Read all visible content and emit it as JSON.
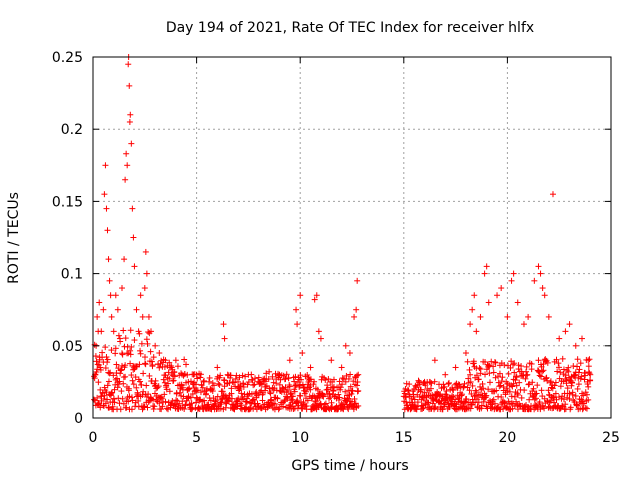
{
  "chart_data": {
    "type": "scatter",
    "title": "Day 194 of 2021, Rate Of TEC Index for receiver hlfx",
    "xlabel": "GPS time / hours",
    "ylabel": "ROTI / TECUs",
    "xlim": [
      0,
      25
    ],
    "ylim": [
      0,
      0.25
    ],
    "x_ticks": [
      "0",
      "5",
      "10",
      "15",
      "20",
      "25"
    ],
    "y_ticks": [
      "0",
      "0.05",
      "0.1",
      "0.15",
      "0.2",
      "0.25"
    ],
    "grid": true,
    "marker": "+",
    "series_color": "#ff0000",
    "data_gap_hours": [
      12.8,
      15.0
    ],
    "series": [
      {
        "name": "",
        "points": [
          [
            0.1,
            0.012
          ],
          [
            0.15,
            0.05
          ],
          [
            0.2,
            0.07
          ],
          [
            0.25,
            0.06
          ],
          [
            0.3,
            0.08
          ],
          [
            0.35,
            0.035
          ],
          [
            0.4,
            0.06
          ],
          [
            0.5,
            0.075
          ],
          [
            0.55,
            0.155
          ],
          [
            0.6,
            0.175
          ],
          [
            0.65,
            0.145
          ],
          [
            0.7,
            0.13
          ],
          [
            0.75,
            0.11
          ],
          [
            0.8,
            0.095
          ],
          [
            0.85,
            0.085
          ],
          [
            0.9,
            0.07
          ],
          [
            1.0,
            0.06
          ],
          [
            1.1,
            0.085
          ],
          [
            1.2,
            0.075
          ],
          [
            1.3,
            0.055
          ],
          [
            1.4,
            0.09
          ],
          [
            1.5,
            0.11
          ],
          [
            1.55,
            0.165
          ],
          [
            1.6,
            0.183
          ],
          [
            1.65,
            0.175
          ],
          [
            1.7,
            0.245
          ],
          [
            1.72,
            0.25
          ],
          [
            1.75,
            0.23
          ],
          [
            1.78,
            0.205
          ],
          [
            1.8,
            0.21
          ],
          [
            1.85,
            0.19
          ],
          [
            1.9,
            0.145
          ],
          [
            1.95,
            0.125
          ],
          [
            2.0,
            0.105
          ],
          [
            2.1,
            0.075
          ],
          [
            2.2,
            0.06
          ],
          [
            2.3,
            0.085
          ],
          [
            2.4,
            0.07
          ],
          [
            2.5,
            0.09
          ],
          [
            2.55,
            0.115
          ],
          [
            2.6,
            0.1
          ],
          [
            2.7,
            0.07
          ],
          [
            2.8,
            0.06
          ],
          [
            3.0,
            0.05
          ],
          [
            3.2,
            0.045
          ],
          [
            3.5,
            0.04
          ],
          [
            3.8,
            0.035
          ],
          [
            4.0,
            0.04
          ],
          [
            4.3,
            0.03
          ],
          [
            4.6,
            0.025
          ],
          [
            5.0,
            0.03
          ],
          [
            5.5,
            0.02
          ],
          [
            6.0,
            0.035
          ],
          [
            6.3,
            0.065
          ],
          [
            6.35,
            0.055
          ],
          [
            6.5,
            0.03
          ],
          [
            7.0,
            0.025
          ],
          [
            7.5,
            0.03
          ],
          [
            8.0,
            0.028
          ],
          [
            8.5,
            0.032
          ],
          [
            9.0,
            0.03
          ],
          [
            9.5,
            0.04
          ],
          [
            9.8,
            0.075
          ],
          [
            9.85,
            0.065
          ],
          [
            10.0,
            0.085
          ],
          [
            10.1,
            0.045
          ],
          [
            10.5,
            0.035
          ],
          [
            10.7,
            0.082
          ],
          [
            10.8,
            0.085
          ],
          [
            10.9,
            0.06
          ],
          [
            11.0,
            0.055
          ],
          [
            11.5,
            0.04
          ],
          [
            12.0,
            0.035
          ],
          [
            12.2,
            0.05
          ],
          [
            12.4,
            0.045
          ],
          [
            12.6,
            0.07
          ],
          [
            12.7,
            0.075
          ],
          [
            12.75,
            0.095
          ],
          [
            12.8,
            0.03
          ],
          [
            15.0,
            0.015
          ],
          [
            15.5,
            0.02
          ],
          [
            16.0,
            0.025
          ],
          [
            16.5,
            0.04
          ],
          [
            17.0,
            0.03
          ],
          [
            17.5,
            0.035
          ],
          [
            18.0,
            0.045
          ],
          [
            18.2,
            0.065
          ],
          [
            18.3,
            0.075
          ],
          [
            18.4,
            0.085
          ],
          [
            18.5,
            0.06
          ],
          [
            18.7,
            0.07
          ],
          [
            18.9,
            0.1
          ],
          [
            19.0,
            0.105
          ],
          [
            19.1,
            0.08
          ],
          [
            19.5,
            0.085
          ],
          [
            19.7,
            0.09
          ],
          [
            20.0,
            0.07
          ],
          [
            20.2,
            0.095
          ],
          [
            20.3,
            0.1
          ],
          [
            20.5,
            0.08
          ],
          [
            20.8,
            0.065
          ],
          [
            21.0,
            0.07
          ],
          [
            21.3,
            0.095
          ],
          [
            21.5,
            0.105
          ],
          [
            21.6,
            0.1
          ],
          [
            21.7,
            0.09
          ],
          [
            21.8,
            0.085
          ],
          [
            22.0,
            0.07
          ],
          [
            22.2,
            0.155
          ],
          [
            22.5,
            0.055
          ],
          [
            22.8,
            0.06
          ],
          [
            23.0,
            0.065
          ],
          [
            23.3,
            0.05
          ],
          [
            23.6,
            0.055
          ],
          [
            23.9,
            0.04
          ],
          [
            24.0,
            0.03
          ]
        ]
      }
    ]
  }
}
